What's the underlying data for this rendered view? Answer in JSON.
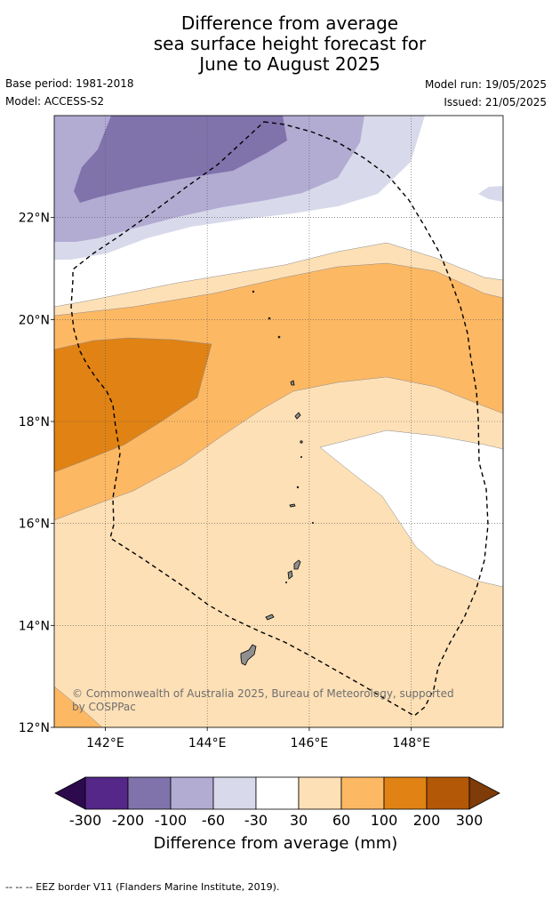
{
  "title": {
    "line1": "Difference from average",
    "line2": "sea surface height forecast for",
    "line3": "June to August 2025"
  },
  "meta": {
    "base_period": "Base period: 1981-2018",
    "model": "Model: ACCESS-S2",
    "model_run": "Model run: 19/05/2025",
    "issued": "Issued: 21/05/2025"
  },
  "map": {
    "lon_range": [
      141.0,
      149.8
    ],
    "lat_range": [
      12.0,
      24.0
    ],
    "lon_ticks": [
      {
        "value": 142,
        "label": "142°E"
      },
      {
        "value": 144,
        "label": "144°E"
      },
      {
        "value": 146,
        "label": "146°E"
      },
      {
        "value": 148,
        "label": "148°E"
      }
    ],
    "lat_ticks": [
      {
        "value": 12,
        "label": "12°N"
      },
      {
        "value": 14,
        "label": "14°N"
      },
      {
        "value": 16,
        "label": "16°N"
      },
      {
        "value": 18,
        "label": "18°N"
      },
      {
        "value": 20,
        "label": "20°N"
      },
      {
        "value": 22,
        "label": "22°N"
      }
    ],
    "copyright": "© Commonwealth of Australia 2025, Bureau of Meteorology, supported",
    "copyright_line2": "by COSPPac"
  },
  "colorbar": {
    "labels": [
      "-300",
      "-200",
      "-100",
      "-60",
      "-30",
      "30",
      "60",
      "100",
      "200",
      "300"
    ],
    "colors": [
      "#2d0a4e",
      "#542788",
      "#8073ac",
      "#b2abd2",
      "#d8daeb",
      "#ffffff",
      "#fee0b6",
      "#fdb863",
      "#e08214",
      "#b35806",
      "#7f3b08"
    ],
    "title": "Difference from average (mm)"
  },
  "footer": {
    "legend_text": "--  --  -- EEZ border V11 (Flanders Marine Institute, 2019)."
  }
}
